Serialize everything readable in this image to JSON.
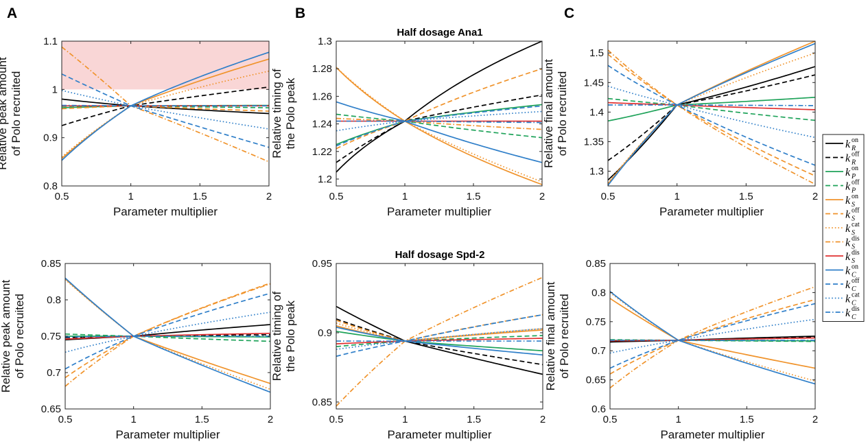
{
  "panel_letters": [
    "A",
    "B",
    "C"
  ],
  "row_titles": [
    "Half dosage Ana1",
    "Half dosage Spd-2"
  ],
  "legend": [
    {
      "base": "k",
      "sub": "R",
      "sup": "on",
      "color": "#000000",
      "dash": "solid"
    },
    {
      "base": "k",
      "sub": "R",
      "sup": "off",
      "color": "#000000",
      "dash": "dashed"
    },
    {
      "base": "k",
      "sub": "P",
      "sup": "on",
      "color": "#1fa35a",
      "dash": "solid"
    },
    {
      "base": "k",
      "sub": "P",
      "sup": "off",
      "color": "#1fa35a",
      "dash": "dashed"
    },
    {
      "base": "k",
      "sub": "S",
      "sup": "on",
      "color": "#f0932b",
      "dash": "solid"
    },
    {
      "base": "k",
      "sub": "S",
      "sup": "off",
      "color": "#f0932b",
      "dash": "dashed"
    },
    {
      "base": "k",
      "sub": "S",
      "sup": "cat",
      "color": "#f0932b",
      "dash": "dotted"
    },
    {
      "base": "k",
      "sub": "S",
      "sup": "dis",
      "color": "#f0932b",
      "dash": "dashdot"
    },
    {
      "base": "k",
      "sub": "S",
      "sup": "dis",
      "color": "#e03030",
      "dash": "solid"
    },
    {
      "base": "k",
      "sub": "C",
      "sup": "on",
      "color": "#2f7fc9",
      "dash": "solid"
    },
    {
      "base": "k",
      "sub": "C",
      "sup": "off",
      "color": "#2f7fc9",
      "dash": "dashed"
    },
    {
      "base": "k",
      "sub": "C",
      "sup": "cat",
      "color": "#2f7fc9",
      "dash": "dotted"
    },
    {
      "base": "k",
      "sub": "C",
      "sup": "dis",
      "color": "#2f7fc9",
      "dash": "dashdot"
    }
  ],
  "chart_data": [
    {
      "type": "line",
      "panel": "A",
      "row": 0,
      "xlabel": "Parameter multiplier",
      "ylabel": [
        "Relative peak amount",
        "of Polo recruited"
      ],
      "xlim": [
        0.5,
        2
      ],
      "ylim": [
        0.8,
        1.1
      ],
      "xticks": [
        "0.5",
        "1",
        "1.5",
        "2"
      ],
      "yticks": [
        "0.8",
        "0.9",
        "1",
        "1.1"
      ],
      "shaded_region": {
        "y_from": 1.0,
        "y_to": 1.1,
        "color": "#f9d6d6"
      },
      "center": 0.966,
      "series": [
        {
          "y05": 0.98,
          "y2": 0.95,
          "k": 0.6
        },
        {
          "y05": 0.925,
          "y2": 1.005,
          "k": 0.7
        },
        {
          "y05": 0.962,
          "y2": 0.967,
          "k": 0.6
        },
        {
          "y05": 0.965,
          "y2": 0.962,
          "k": 0.6
        },
        {
          "y05": 0.857,
          "y2": 1.063,
          "k": 0.6
        },
        {
          "y05": 0.96,
          "y2": 0.955,
          "k": 0.6
        },
        {
          "y05": 0.86,
          "y2": 1.038,
          "k": 0.6
        },
        {
          "y05": 1.088,
          "y2": 0.85,
          "k": 1.2
        },
        {
          "y05": 0.966,
          "y2": 0.966,
          "k": 0.6
        },
        {
          "y05": 0.853,
          "y2": 1.077,
          "k": 0.5
        },
        {
          "y05": 1.032,
          "y2": 0.88,
          "k": 0.9
        },
        {
          "y05": 0.998,
          "y2": 0.918,
          "k": 0.8
        },
        {
          "y05": 0.967,
          "y2": 0.966,
          "k": 0.6
        }
      ]
    },
    {
      "type": "line",
      "panel": "B",
      "row": 0,
      "xlabel": "Parameter multiplier",
      "ylabel": [
        "Relative timing of",
        "the Polo peak"
      ],
      "xlim": [
        0.5,
        2
      ],
      "ylim": [
        1.195,
        1.3
      ],
      "xticks": [
        "0.5",
        "1",
        "1.5",
        "2"
      ],
      "yticks": [
        "1.2",
        "1.22",
        "1.24",
        "1.26",
        "1.28",
        "1.3"
      ],
      "center": 1.242,
      "series": [
        {
          "y05": 1.205,
          "y2": 1.3,
          "k": 0.05
        },
        {
          "y05": 1.212,
          "y2": 1.261,
          "k": 0.6
        },
        {
          "y05": 1.225,
          "y2": 1.254,
          "k": 0.5
        },
        {
          "y05": 1.247,
          "y2": 1.23,
          "k": 0.5
        },
        {
          "y05": 1.281,
          "y2": 1.196,
          "k": 0.3
        },
        {
          "y05": 1.222,
          "y2": 1.28,
          "k": 0.4
        },
        {
          "y05": 1.281,
          "y2": 1.198,
          "k": 0.5
        },
        {
          "y05": 1.244,
          "y2": 1.236,
          "k": 0.5
        },
        {
          "y05": 1.242,
          "y2": 1.242,
          "k": 0.5
        },
        {
          "y05": 1.256,
          "y2": 1.212,
          "k": 0.5
        },
        {
          "y05": 1.224,
          "y2": 1.253,
          "k": 0.5
        },
        {
          "y05": 1.235,
          "y2": 1.249,
          "k": 0.5
        },
        {
          "y05": 1.242,
          "y2": 1.241,
          "k": 0.5
        }
      ]
    },
    {
      "type": "line",
      "panel": "C",
      "row": 0,
      "xlabel": "Parameter multiplier",
      "ylabel": [
        "Relative final amount",
        "of Polo recruited"
      ],
      "xlim": [
        0.5,
        2
      ],
      "ylim": [
        1.275,
        1.52
      ],
      "xticks": [
        "0.5",
        "1",
        "1.5",
        "2"
      ],
      "yticks": [
        "1.3",
        "1.35",
        "1.4",
        "1.45",
        "1.5"
      ],
      "center": 1.412,
      "series": [
        {
          "y05": 1.285,
          "y2": 1.477,
          "k": 1.4
        },
        {
          "y05": 1.318,
          "y2": 1.463,
          "k": 1.4
        },
        {
          "y05": 1.385,
          "y2": 1.425,
          "k": 1.4
        },
        {
          "y05": 1.423,
          "y2": 1.386,
          "k": 0.6
        },
        {
          "y05": 1.278,
          "y2": 1.52,
          "k": 0.7
        },
        {
          "y05": 1.498,
          "y2": 1.292,
          "k": 0.6
        },
        {
          "y05": 1.28,
          "y2": 1.5,
          "k": 0.7
        },
        {
          "y05": 1.505,
          "y2": 1.278,
          "k": 0.6
        },
        {
          "y05": 1.416,
          "y2": 1.404,
          "k": 0.5
        },
        {
          "y05": 1.276,
          "y2": 1.516,
          "k": 0.7
        },
        {
          "y05": 1.479,
          "y2": 1.31,
          "k": 0.6
        },
        {
          "y05": 1.444,
          "y2": 1.357,
          "k": 0.6
        },
        {
          "y05": 1.412,
          "y2": 1.411,
          "k": 0.5
        }
      ]
    },
    {
      "type": "line",
      "panel": "A",
      "row": 1,
      "xlabel": "Parameter multiplier",
      "ylabel": [
        "Relative peak amount",
        "of Polo recruited"
      ],
      "xlim": [
        0.5,
        2
      ],
      "ylim": [
        0.65,
        0.85
      ],
      "xticks": [
        "0.5",
        "1",
        "1.5",
        "2"
      ],
      "yticks": [
        "0.65",
        "0.7",
        "0.75",
        "0.8",
        "0.85"
      ],
      "center": 0.75,
      "series": [
        {
          "y05": 0.745,
          "y2": 0.766,
          "k": 0.6
        },
        {
          "y05": 0.748,
          "y2": 0.752,
          "k": 0.6
        },
        {
          "y05": 0.75,
          "y2": 0.749,
          "k": 0.6
        },
        {
          "y05": 0.753,
          "y2": 0.743,
          "k": 0.6
        },
        {
          "y05": 0.829,
          "y2": 0.685,
          "k": 0.8
        },
        {
          "y05": 0.693,
          "y2": 0.823,
          "k": 0.6
        },
        {
          "y05": 0.828,
          "y2": 0.677,
          "k": 0.8
        },
        {
          "y05": 0.681,
          "y2": 0.822,
          "k": 0.6
        },
        {
          "y05": 0.746,
          "y2": 0.754,
          "k": 0.6
        },
        {
          "y05": 0.83,
          "y2": 0.673,
          "k": 0.8
        },
        {
          "y05": 0.705,
          "y2": 0.809,
          "k": 0.6
        },
        {
          "y05": 0.728,
          "y2": 0.783,
          "k": 0.6
        },
        {
          "y05": 0.749,
          "y2": 0.75,
          "k": 0.6
        }
      ]
    },
    {
      "type": "line",
      "panel": "B",
      "row": 1,
      "xlabel": "Parameter multiplier",
      "ylabel": [
        "Relative timing of",
        "the Polo peak"
      ],
      "xlim": [
        0.5,
        2
      ],
      "ylim": [
        0.845,
        0.95
      ],
      "xticks": [
        "0.5",
        "1",
        "1.5",
        "2"
      ],
      "yticks": [
        "0.85",
        "0.9",
        "0.95"
      ],
      "center": 0.894,
      "series": [
        {
          "y05": 0.919,
          "y2": 0.87,
          "k": 0.8
        },
        {
          "y05": 0.91,
          "y2": 0.877,
          "k": 0.7
        },
        {
          "y05": 0.901,
          "y2": 0.887,
          "k": 0.7
        },
        {
          "y05": 0.89,
          "y2": 0.898,
          "k": 0.5
        },
        {
          "y05": 0.905,
          "y2": 0.902,
          "k": 0.5
        },
        {
          "y05": 0.909,
          "y2": 0.913,
          "k": 0.5
        },
        {
          "y05": 0.907,
          "y2": 0.903,
          "k": 0.5
        },
        {
          "y05": 0.847,
          "y2": 0.94,
          "k": 0.7
        },
        {
          "y05": 0.892,
          "y2": 0.896,
          "k": 0.5
        },
        {
          "y05": 0.904,
          "y2": 0.884,
          "k": 0.7
        },
        {
          "y05": 0.883,
          "y2": 0.913,
          "k": 0.6
        },
        {
          "y05": 0.888,
          "y2": 0.903,
          "k": 0.6
        },
        {
          "y05": 0.894,
          "y2": 0.894,
          "k": 0.5
        }
      ]
    },
    {
      "type": "line",
      "panel": "C",
      "row": 1,
      "xlabel": "Parameter multiplier",
      "ylabel": [
        "Relative final amount",
        "of Polo recruited"
      ],
      "xlim": [
        0.5,
        2
      ],
      "ylim": [
        0.6,
        0.85
      ],
      "xticks": [
        "0.5",
        "1",
        "1.5",
        "2"
      ],
      "yticks": [
        "0.6",
        "0.65",
        "0.7",
        "0.75",
        "0.8",
        "0.85"
      ],
      "center": 0.718,
      "series": [
        {
          "y05": 0.715,
          "y2": 0.725,
          "k": 0.5
        },
        {
          "y05": 0.716,
          "y2": 0.723,
          "k": 0.5
        },
        {
          "y05": 0.718,
          "y2": 0.717,
          "k": 0.5
        },
        {
          "y05": 0.719,
          "y2": 0.716,
          "k": 0.5
        },
        {
          "y05": 0.79,
          "y2": 0.67,
          "k": 0.8
        },
        {
          "y05": 0.66,
          "y2": 0.788,
          "k": 0.6
        },
        {
          "y05": 0.8,
          "y2": 0.648,
          "k": 0.7
        },
        {
          "y05": 0.636,
          "y2": 0.81,
          "k": 0.6
        },
        {
          "y05": 0.717,
          "y2": 0.722,
          "k": 0.5
        },
        {
          "y05": 0.802,
          "y2": 0.643,
          "k": 0.7
        },
        {
          "y05": 0.67,
          "y2": 0.781,
          "k": 0.6
        },
        {
          "y05": 0.696,
          "y2": 0.754,
          "k": 0.6
        },
        {
          "y05": 0.718,
          "y2": 0.718,
          "k": 0.5
        }
      ]
    }
  ]
}
